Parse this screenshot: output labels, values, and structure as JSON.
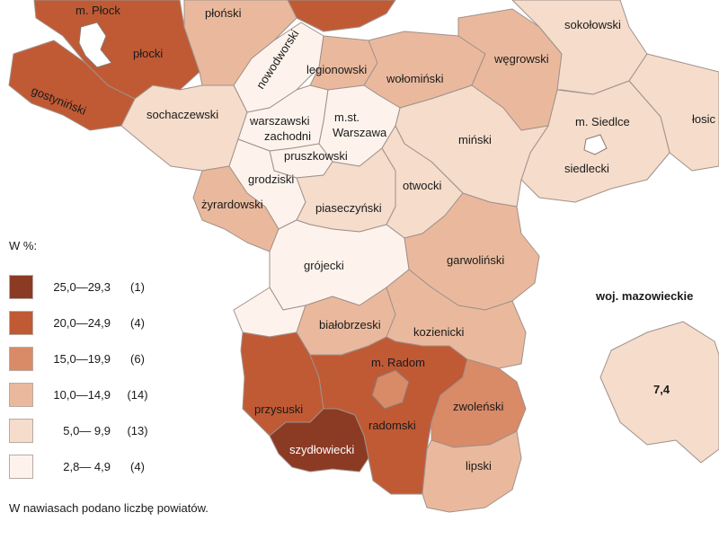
{
  "legend": {
    "title": "W %:",
    "items": [
      {
        "range": "25,0—29,3",
        "count": "(1)",
        "color": "#8b3a24"
      },
      {
        "range": "20,0—24,9",
        "count": "(4)",
        "color": "#c05a35"
      },
      {
        "range": "15,0—19,9",
        "count": "(6)",
        "color": "#d98a67"
      },
      {
        "range": "10,0—14,9",
        "count": "(14)",
        "color": "#eab99d"
      },
      {
        "range": "5,0— 9,9",
        "count": "(13)",
        "color": "#f5dccb"
      },
      {
        "range": "2,8— 4,9",
        "count": "(4)",
        "color": "#fdf3ec"
      }
    ]
  },
  "footnote": "W nawiasach podano liczbę powiatów.",
  "region": {
    "title": "woj. mazowieckie",
    "value": "7,4"
  },
  "districts": {
    "m_plock": "m. Płock",
    "plocki": "płocki",
    "plonski": "płoński",
    "gostyninski": "gostyniński",
    "nowodworski": "nowodworski",
    "legionowski": "legionowski",
    "wolominski": "wołomiński",
    "wegrowski": "węgrowski",
    "sokolowski": "sokołowski",
    "sochaczewski": "sochaczewski",
    "warszawski_zachodni_1": "warszawski",
    "warszawski_zachodni_2": "zachodni",
    "m_st_warszawa_1": "m.st.",
    "m_st_warszawa_2": "Warszawa",
    "minski": "miński",
    "m_siedlce": "m. Siedlce",
    "losicki": "łosic",
    "pruszkowski": "pruszkowski",
    "grodziski": "grodziski",
    "siedlecki": "siedlecki",
    "zyrardowski": "żyrardowski",
    "piaseczynski": "piaseczyński",
    "otwocki": "otwocki",
    "grojecki": "grójecki",
    "garwolinski": "garwoliński",
    "bialobrzeski": "białobrzeski",
    "kozienicki": "kozienicki",
    "m_radom": "m. Radom",
    "przysuski": "przysuski",
    "radomski": "radomski",
    "zwolenski": "zwoleński",
    "szydlowiecki": "szydłowiecki",
    "lipski": "lipski"
  }
}
